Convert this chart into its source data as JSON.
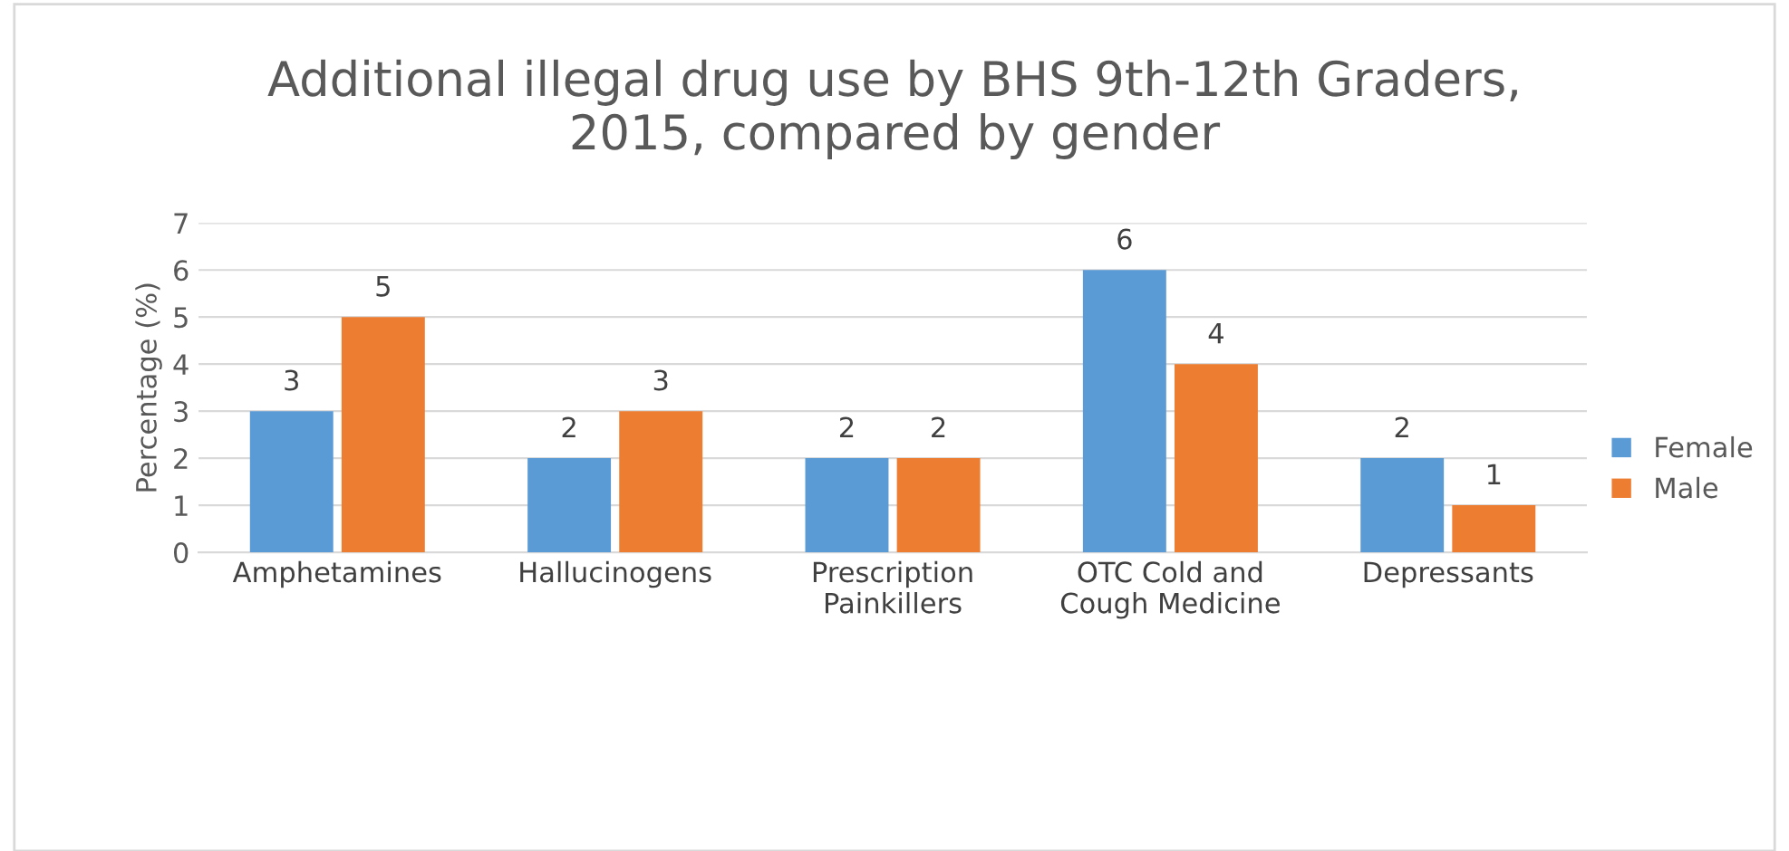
{
  "chart_data": {
    "type": "bar",
    "title": "Additional illegal drug use by BHS 9th-12th Graders,\n2015, compared by gender",
    "ylabel": "Percentage (%)",
    "categories": [
      "Amphetamines",
      "Hallucinogens",
      "Prescription\nPainkillers",
      "OTC Cold and\nCough Medicine",
      "Depressants"
    ],
    "series": [
      {
        "name": "Female",
        "color": "#5b9bd5",
        "values": [
          3,
          2,
          2,
          6,
          2
        ]
      },
      {
        "name": "Male",
        "color": "#ed7d31",
        "values": [
          5,
          3,
          2,
          4,
          1
        ]
      }
    ],
    "ylim": [
      0,
      7
    ],
    "yticks": [
      0,
      1,
      2,
      3,
      4,
      5,
      6,
      7
    ],
    "grid": "y",
    "legend": "right",
    "data_labels": true
  }
}
